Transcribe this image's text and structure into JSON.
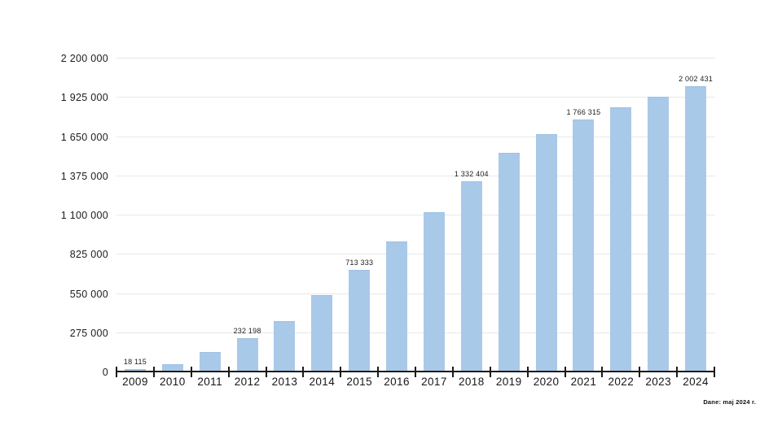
{
  "colors": {
    "bar_fill": "#a9c9e9",
    "gridline": "#e8e8e8",
    "axis": "#1a1a1a",
    "text": "#1c1c1c",
    "background": "#ffffff"
  },
  "footer": {
    "note": "Dane: maj 2024 r."
  },
  "chart_data": {
    "type": "bar",
    "title": "",
    "categories": [
      "2009",
      "2010",
      "2011",
      "2012",
      "2013",
      "2014",
      "2015",
      "2016",
      "2017",
      "2018",
      "2019",
      "2020",
      "2021",
      "2022",
      "2023",
      "2024"
    ],
    "values": [
      18115,
      52000,
      139000,
      232198,
      356000,
      535000,
      713333,
      912000,
      1118000,
      1332404,
      1533000,
      1666000,
      1766315,
      1855000,
      1925000,
      2002431
    ],
    "bar_labels": [
      "18 115",
      null,
      null,
      "232 198",
      null,
      null,
      "713 333",
      null,
      null,
      "1 332 404",
      null,
      null,
      "1 766 315",
      null,
      null,
      "2 002 431"
    ],
    "yticks": [
      "2 200 000",
      "1 925 000",
      "1 650 000",
      "1 375 000",
      "1 100 000",
      "825 000",
      "550 000",
      "275 000",
      "0"
    ],
    "ylim": [
      0,
      2200000
    ],
    "ytick_interval": 275000,
    "xlabel": "",
    "ylabel": "",
    "grid": true,
    "legend": false,
    "source_note": "Dane: maj 2024 r."
  }
}
